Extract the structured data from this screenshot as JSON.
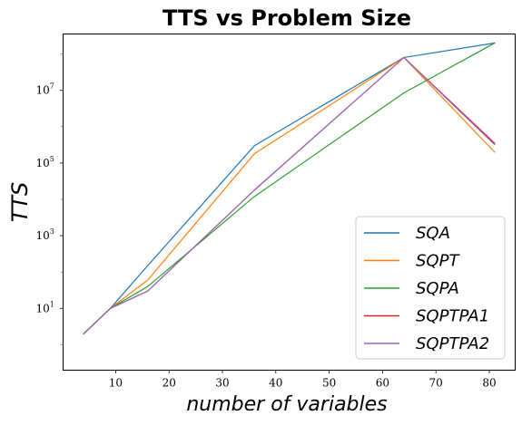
{
  "chart_data": {
    "type": "line",
    "title": "TTS vs Problem Size",
    "xlabel": "number of variables",
    "ylabel": "TTS",
    "x": [
      4,
      9,
      16,
      36,
      64,
      81
    ],
    "xlim": [
      0.15,
      84.85
    ],
    "ylim_log10": [
      -0.7,
      8.55
    ],
    "yscale": "log",
    "x_ticks": [
      10,
      20,
      30,
      40,
      50,
      60,
      70,
      80
    ],
    "y_ticks": [
      {
        "exp": 1,
        "base": "10",
        "power": "1"
      },
      {
        "exp": 3,
        "base": "10",
        "power": "3"
      },
      {
        "exp": 5,
        "base": "10",
        "power": "5"
      },
      {
        "exp": 7,
        "base": "10",
        "power": "7"
      }
    ],
    "legend_position": "lower right",
    "grid": false,
    "series": [
      {
        "name": "SQA",
        "color": "#1f77b4",
        "values": [
          2,
          10,
          150,
          300000,
          80000000,
          200000000
        ]
      },
      {
        "name": "SQPT",
        "color": "#ff7f0e",
        "values": [
          2,
          10,
          60,
          180000,
          80000000,
          200000
        ]
      },
      {
        "name": "SQPA",
        "color": "#2ca02c",
        "values": [
          2,
          10,
          40,
          12000,
          8500000,
          200000000
        ]
      },
      {
        "name": "SQPTPA1",
        "color": "#d62728",
        "values": [
          2,
          10,
          30,
          18000,
          80000000,
          350000
        ]
      },
      {
        "name": "SQPTPA2",
        "color": "#9467bd",
        "values": [
          2,
          10,
          30,
          18000,
          80000000,
          320000
        ]
      }
    ]
  }
}
